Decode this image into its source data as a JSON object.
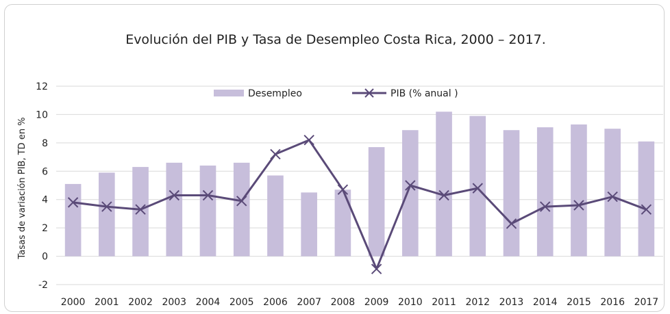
{
  "chart_data": {
    "type": "bar",
    "title": "Evolución del PIB y Tasa de Desempleo  Costa Rica,  2000 – 2017.",
    "ylabel": "Tasas de variación PIB, TD en %",
    "xlabel": "",
    "ylim": [
      -2,
      12
    ],
    "yticks": [
      12,
      10,
      8,
      6,
      4,
      2,
      0,
      -2
    ],
    "grid": true,
    "legend_position": "top-center",
    "categories": [
      "2000",
      "2001",
      "2002",
      "2003",
      "2004",
      "2005",
      "2006",
      "2007",
      "2008",
      "2009",
      "2010",
      "2011",
      "2012",
      "2013",
      "2014",
      "2015",
      "2016",
      "2017"
    ],
    "series": [
      {
        "name": "Desempleo",
        "kind": "bar",
        "color": "#c7bedb",
        "values": [
          5.1,
          5.9,
          6.3,
          6.6,
          6.4,
          6.6,
          5.7,
          4.5,
          4.7,
          7.7,
          8.9,
          10.2,
          9.9,
          8.9,
          9.1,
          9.3,
          9.0,
          8.1
        ]
      },
      {
        "name": "PIB (% anual )",
        "kind": "line",
        "marker": "x",
        "color": "#5a4a78",
        "values": [
          3.8,
          3.5,
          3.3,
          4.3,
          4.3,
          3.9,
          7.2,
          8.2,
          4.7,
          -0.9,
          5.0,
          4.3,
          4.8,
          2.3,
          3.5,
          3.6,
          4.2,
          3.3
        ]
      }
    ]
  }
}
